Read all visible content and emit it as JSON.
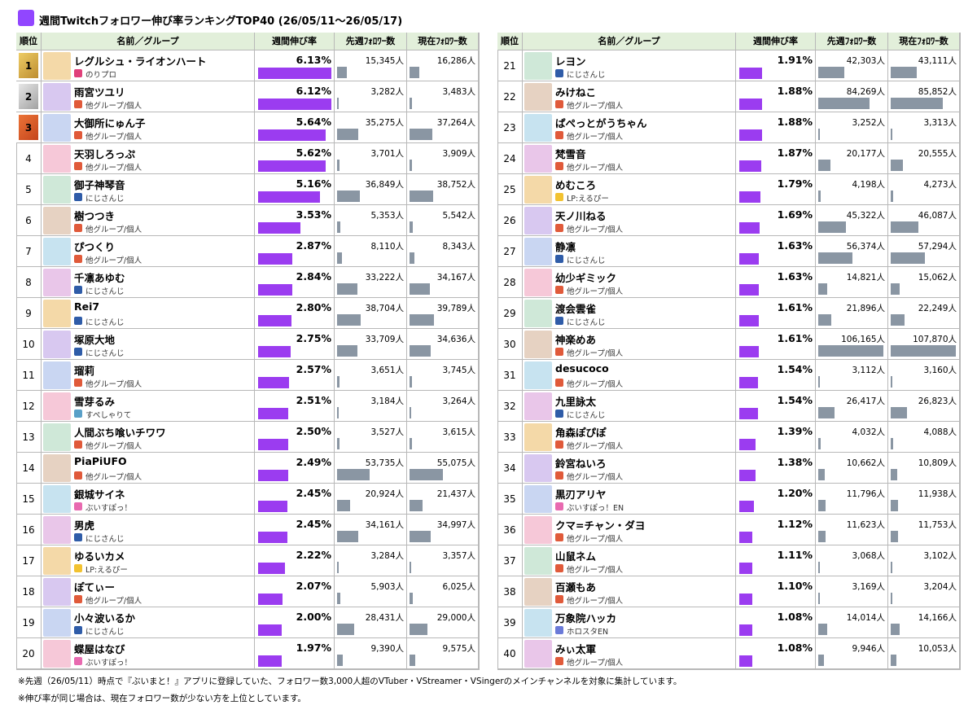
{
  "header": {
    "title": "週間Twitchフォロワー伸び率ランキングTOP40 (26/05/11～26/05/17)"
  },
  "columns": [
    "順位",
    "名前／グループ",
    "週間伸び率",
    "先週ﾌｫﾛﾜｰ数",
    "現在ﾌｫﾛﾜｰ数"
  ],
  "rows": [
    {
      "rank": 1,
      "name": "レグルシュ・ライオンハート",
      "group": "のりプロ",
      "rate": "6.13%",
      "prev": "15,345人",
      "curr": "16,286人"
    },
    {
      "rank": 2,
      "name": "雨宮ツユリ",
      "group": "他グループ/個人",
      "rate": "6.12%",
      "prev": "3,282人",
      "curr": "3,483人"
    },
    {
      "rank": 3,
      "name": "大御所にゅん子",
      "group": "他グループ/個人",
      "rate": "5.64%",
      "prev": "35,275人",
      "curr": "37,264人"
    },
    {
      "rank": 4,
      "name": "天羽しろっぷ",
      "group": "他グループ/個人",
      "rate": "5.62%",
      "prev": "3,701人",
      "curr": "3,909人"
    },
    {
      "rank": 5,
      "name": "御子神琴音",
      "group": "にじさんじ",
      "rate": "5.16%",
      "prev": "36,849人",
      "curr": "38,752人"
    },
    {
      "rank": 6,
      "name": "樹つつき",
      "group": "他グループ/個人",
      "rate": "3.53%",
      "prev": "5,353人",
      "curr": "5,542人"
    },
    {
      "rank": 7,
      "name": "ぴつくり",
      "group": "他グループ/個人",
      "rate": "2.87%",
      "prev": "8,110人",
      "curr": "8,343人"
    },
    {
      "rank": 8,
      "name": "千凛あゆむ",
      "group": "にじさんじ",
      "rate": "2.84%",
      "prev": "33,222人",
      "curr": "34,167人"
    },
    {
      "rank": 9,
      "name": "Rei7",
      "group": "にじさんじ",
      "rate": "2.80%",
      "prev": "38,704人",
      "curr": "39,789人"
    },
    {
      "rank": 10,
      "name": "塚原大地",
      "group": "にじさんじ",
      "rate": "2.75%",
      "prev": "33,709人",
      "curr": "34,636人"
    },
    {
      "rank": 11,
      "name": "瑠莉",
      "group": "他グループ/個人",
      "rate": "2.57%",
      "prev": "3,651人",
      "curr": "3,745人"
    },
    {
      "rank": 12,
      "name": "雪芽るみ",
      "group": "すぺしゃりて",
      "rate": "2.51%",
      "prev": "3,184人",
      "curr": "3,264人"
    },
    {
      "rank": 13,
      "name": "人間ぶち喰いチワワ",
      "group": "他グループ/個人",
      "rate": "2.50%",
      "prev": "3,527人",
      "curr": "3,615人"
    },
    {
      "rank": 14,
      "name": "PiaPiUFO",
      "group": "他グループ/個人",
      "rate": "2.49%",
      "prev": "53,735人",
      "curr": "55,075人"
    },
    {
      "rank": 15,
      "name": "銀城サイネ",
      "group": "ぶいすぽっ！",
      "rate": "2.45%",
      "prev": "20,924人",
      "curr": "21,437人"
    },
    {
      "rank": 16,
      "name": "男虎",
      "group": "にじさんじ",
      "rate": "2.45%",
      "prev": "34,161人",
      "curr": "34,997人"
    },
    {
      "rank": 17,
      "name": "ゆるいカメ",
      "group": "LP:えるぴー",
      "rate": "2.22%",
      "prev": "3,284人",
      "curr": "3,357人"
    },
    {
      "rank": 18,
      "name": "ぽてぃー",
      "group": "他グループ/個人",
      "rate": "2.07%",
      "prev": "5,903人",
      "curr": "6,025人"
    },
    {
      "rank": 19,
      "name": "小々波いるか",
      "group": "にじさんじ",
      "rate": "2.00%",
      "prev": "28,431人",
      "curr": "29,000人"
    },
    {
      "rank": 20,
      "name": "蝶屋はなび",
      "group": "ぶいすぽっ！",
      "rate": "1.97%",
      "prev": "9,390人",
      "curr": "9,575人"
    },
    {
      "rank": 21,
      "name": "レヨン",
      "group": "にじさんじ",
      "rate": "1.91%",
      "prev": "42,303人",
      "curr": "43,111人"
    },
    {
      "rank": 22,
      "name": "みけねこ",
      "group": "他グループ/個人",
      "rate": "1.88%",
      "prev": "84,269人",
      "curr": "85,852人"
    },
    {
      "rank": 23,
      "name": "ぱぺっとがうちゃん",
      "group": "他グループ/個人",
      "rate": "1.88%",
      "prev": "3,252人",
      "curr": "3,313人"
    },
    {
      "rank": 24,
      "name": "梵雪音",
      "group": "他グループ/個人",
      "rate": "1.87%",
      "prev": "20,177人",
      "curr": "20,555人"
    },
    {
      "rank": 25,
      "name": "めむころ",
      "group": "LP:えるぴー",
      "rate": "1.79%",
      "prev": "4,198人",
      "curr": "4,273人"
    },
    {
      "rank": 26,
      "name": "天ノ川ねる",
      "group": "他グループ/個人",
      "rate": "1.69%",
      "prev": "45,322人",
      "curr": "46,087人"
    },
    {
      "rank": 27,
      "name": "静凛",
      "group": "にじさんじ",
      "rate": "1.63%",
      "prev": "56,374人",
      "curr": "57,294人"
    },
    {
      "rank": 28,
      "name": "幼少ギミック",
      "group": "他グループ/個人",
      "rate": "1.63%",
      "prev": "14,821人",
      "curr": "15,062人"
    },
    {
      "rank": 29,
      "name": "渡会雲雀",
      "group": "にじさんじ",
      "rate": "1.61%",
      "prev": "21,896人",
      "curr": "22,249人"
    },
    {
      "rank": 30,
      "name": "神楽めあ",
      "group": "他グループ/個人",
      "rate": "1.61%",
      "prev": "106,165人",
      "curr": "107,870人"
    },
    {
      "rank": 31,
      "name": "desucoco",
      "group": "他グループ/個人",
      "rate": "1.54%",
      "prev": "3,112人",
      "curr": "3,160人"
    },
    {
      "rank": 32,
      "name": "九里詠太",
      "group": "にじさんじ",
      "rate": "1.54%",
      "prev": "26,417人",
      "curr": "26,823人"
    },
    {
      "rank": 33,
      "name": "角森ぽぴぽ",
      "group": "他グループ/個人",
      "rate": "1.39%",
      "prev": "4,032人",
      "curr": "4,088人"
    },
    {
      "rank": 34,
      "name": "鈴宮ねいろ",
      "group": "他グループ/個人",
      "rate": "1.38%",
      "prev": "10,662人",
      "curr": "10,809人"
    },
    {
      "rank": 35,
      "name": "黒刃アリヤ",
      "group": "ぶいすぽっ！EN",
      "rate": "1.20%",
      "prev": "11,796人",
      "curr": "11,938人"
    },
    {
      "rank": 36,
      "name": "クマ=チャン・ダヨ",
      "group": "他グループ/個人",
      "rate": "1.12%",
      "prev": "11,623人",
      "curr": "11,753人"
    },
    {
      "rank": 37,
      "name": "山鼠ネム",
      "group": "他グループ/個人",
      "rate": "1.11%",
      "prev": "3,068人",
      "curr": "3,102人"
    },
    {
      "rank": 38,
      "name": "百瀬もあ",
      "group": "他グループ/個人",
      "rate": "1.10%",
      "prev": "3,169人",
      "curr": "3,204人"
    },
    {
      "rank": 39,
      "name": "万象院ハッカ",
      "group": "ホロスタEN",
      "rate": "1.08%",
      "prev": "14,014人",
      "curr": "14,166人"
    },
    {
      "rank": 40,
      "name": "みぃ太軍",
      "group": "他グループ/個人",
      "rate": "1.08%",
      "prev": "9,946人",
      "curr": "10,053人"
    }
  ],
  "notes": [
    "※先週（26/05/11）時点で『ぶいまと！』アプリに登録していた、フォロワー数3,000人超のVTuber・VStreamer・VSingerのメインチャンネルを対象に集計しています。",
    "※伸び率が同じ場合は、現在フォロワー数が少ない方を上位としています。"
  ]
}
